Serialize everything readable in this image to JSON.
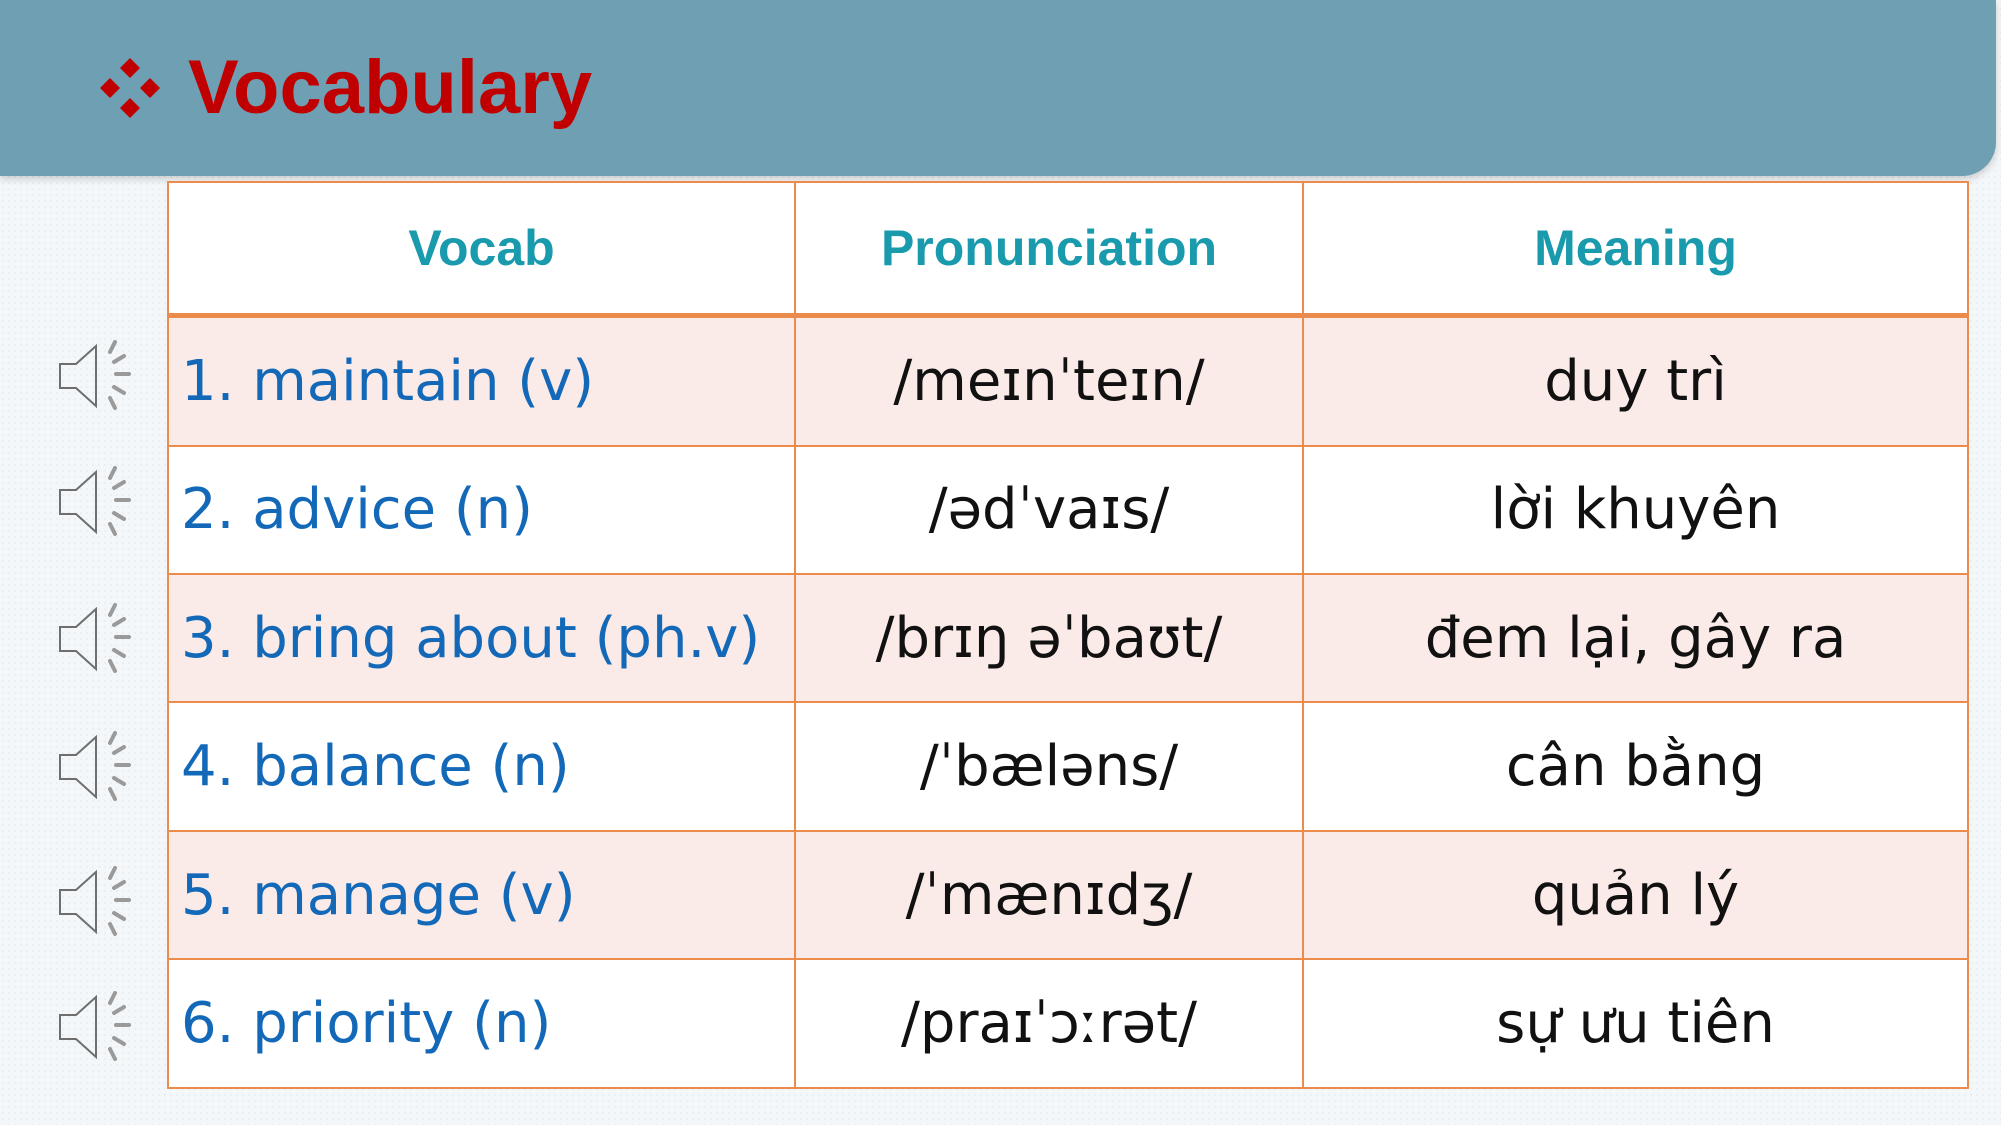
{
  "slide": {
    "title": "Vocabulary",
    "colors": {
      "header_background": "#6f9fb3",
      "title": "#c00000",
      "table_border": "#ec8c4c",
      "header_text": "#1a9aad",
      "vocab_text": "#1369b8",
      "shaded_row": "#fbebe8"
    },
    "bullet_icon": "diamond-bullet-icon",
    "audio_icon": "speaker-icon"
  },
  "table": {
    "headers": [
      "Vocab",
      "Pronunciation",
      "Meaning"
    ],
    "rows": [
      {
        "vocab": "1. maintain (v)",
        "pronunciation": "/meɪnˈteɪn/",
        "meaning": "duy trì"
      },
      {
        "vocab": "2. advice (n)",
        "pronunciation": "/ədˈvaɪs/",
        "meaning": "lời khuyên"
      },
      {
        "vocab": "3. bring about (ph.v)",
        "pronunciation": "/brɪŋ əˈbaʊt/",
        "meaning": "đem lại, gây ra"
      },
      {
        "vocab": "4. balance (n)",
        "pronunciation": "/ˈbæləns/",
        "meaning": "cân bằng"
      },
      {
        "vocab": "5. manage (v)",
        "pronunciation": "/ˈmænɪdʒ/",
        "meaning": "quản lý"
      },
      {
        "vocab": "6. priority  (n)",
        "pronunciation": "/praɪˈɔːrət/",
        "meaning": "sự ưu tiên"
      }
    ]
  }
}
